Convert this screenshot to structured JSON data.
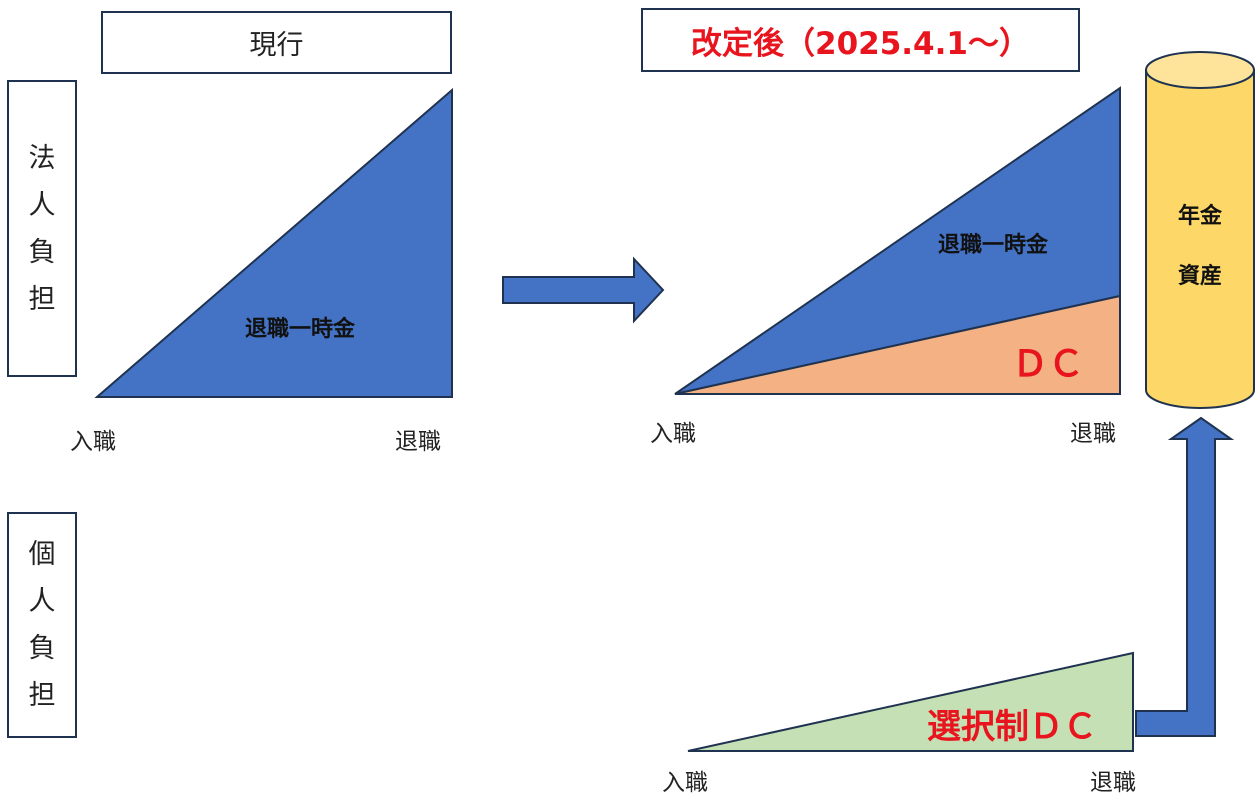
{
  "labels": {
    "corporate_burden": "法人負担",
    "individual_burden": "個人負担",
    "current": "現行",
    "revised": "改定後（2025.4.1～）"
  },
  "current": {
    "lump_sum": "退職一時金",
    "join": "入職",
    "retire": "退職"
  },
  "revised": {
    "lump_sum": "退職一時金",
    "dc": "ＤＣ",
    "join": "入職",
    "retire": "退職"
  },
  "selective": {
    "label": "選択制ＤＣ",
    "join": "入職",
    "retire": "退職"
  },
  "pension_assets": [
    "年金",
    "資産"
  ],
  "colors": {
    "blue": "#4472c4",
    "salmon": "#f4b183",
    "green": "#c5e0b4",
    "gold": "#fdd868",
    "red": "#e8141e",
    "border": "#1f3350"
  }
}
